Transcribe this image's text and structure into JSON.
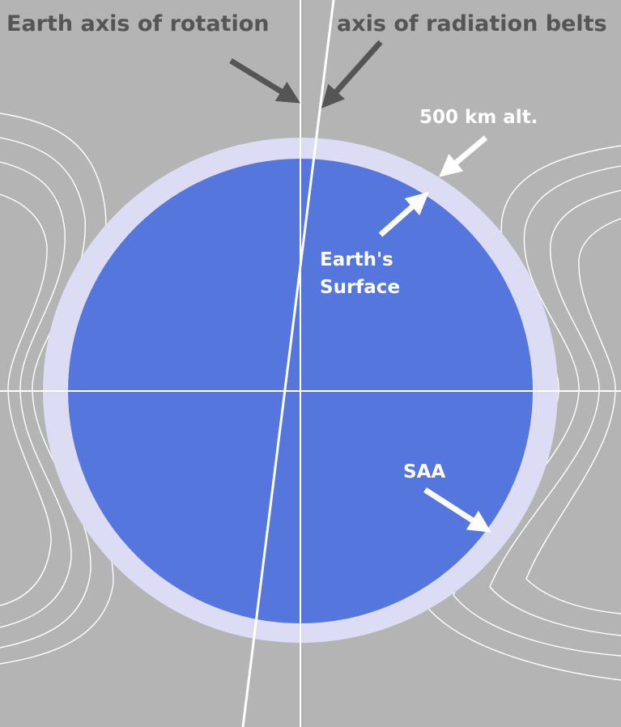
{
  "labels": {
    "rotation_axis": "Earth axis of rotation",
    "belt_axis": "axis of radiation belts",
    "altitude": "500 km alt.",
    "surface": [
      "Earth's",
      "Surface"
    ],
    "saa": "SAA"
  }
}
